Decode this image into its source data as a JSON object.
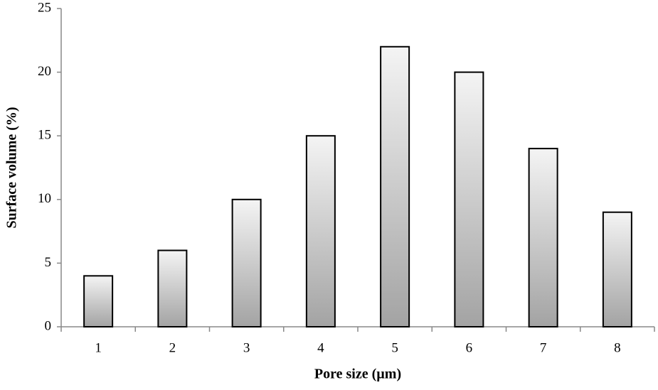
{
  "chart_data": {
    "type": "bar",
    "categories": [
      "1",
      "2",
      "3",
      "4",
      "5",
      "6",
      "7",
      "8"
    ],
    "values": [
      4,
      6,
      10,
      15,
      22,
      20,
      14,
      9
    ],
    "xlabel": "Pore size (µm)",
    "ylabel": "Surface volume (%)",
    "color": [
      "#f4f4f4",
      "#a3a3a3"
    ],
    "edgecolor": "#000000",
    "ylim": [
      0,
      25
    ],
    "yticks": [
      0,
      5,
      10,
      15,
      20,
      25
    ],
    "grid": false
  }
}
